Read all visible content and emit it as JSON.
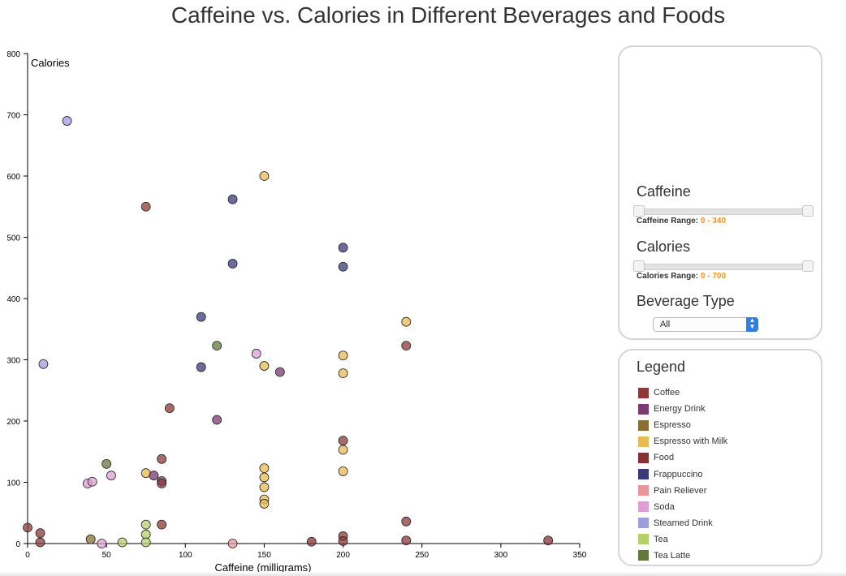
{
  "colors": {
    "Coffee": "#8b3a38",
    "Energy Drink": "#7a3a72",
    "Espresso": "#8c6d32",
    "Espresso with Milk": "#e7ba52",
    "Food": "#843232",
    "Frappuccino": "#393b79",
    "Pain Reliever": "#e7969c",
    "Soda": "#de9ed6",
    "Steamed Drink": "#9c9ede",
    "Tea": "#b5cf6b",
    "Tea Latte": "#637939"
  },
  "controls": {
    "caffeine_label": "Caffeine",
    "caffeine_range_label": "Caffeine Range:",
    "caffeine_range_value": "0 - 340",
    "calories_label": "Calories",
    "calories_range_label": "Calories Range:",
    "calories_range_value": "0 - 700",
    "beverage_type_label": "Beverage Type",
    "beverage_type_value": "All"
  },
  "legend": {
    "title": "Legend",
    "items": [
      "Coffee",
      "Energy Drink",
      "Espresso",
      "Espresso with Milk",
      "Food",
      "Frappuccino",
      "Pain Reliever",
      "Soda",
      "Steamed Drink",
      "Tea",
      "Tea Latte"
    ]
  },
  "chart_data": {
    "type": "scatter",
    "title": "Caffeine vs. Calories in Different Beverages and Foods",
    "xlabel": "Caffeine (milligrams)",
    "ylabel": "Calories",
    "xlim": [
      0,
      350
    ],
    "ylim": [
      0,
      800
    ],
    "xticks": [
      0,
      50,
      100,
      150,
      200,
      250,
      300,
      350
    ],
    "yticks": [
      0,
      100,
      200,
      300,
      400,
      500,
      600,
      700,
      800
    ],
    "grid": false,
    "legend_position": "right",
    "points": [
      {
        "x": 25,
        "y": 690,
        "category": "Steamed Drink"
      },
      {
        "x": 10,
        "y": 293,
        "category": "Steamed Drink"
      },
      {
        "x": 75,
        "y": 550,
        "category": "Coffee"
      },
      {
        "x": 150,
        "y": 600,
        "category": "Espresso with Milk"
      },
      {
        "x": 130,
        "y": 562,
        "category": "Frappuccino"
      },
      {
        "x": 130,
        "y": 457,
        "category": "Frappuccino"
      },
      {
        "x": 200,
        "y": 483,
        "category": "Frappuccino"
      },
      {
        "x": 200,
        "y": 452,
        "category": "Frappuccino"
      },
      {
        "x": 110,
        "y": 370,
        "category": "Frappuccino"
      },
      {
        "x": 110,
        "y": 288,
        "category": "Frappuccino"
      },
      {
        "x": 240,
        "y": 362,
        "category": "Espresso with Milk"
      },
      {
        "x": 240,
        "y": 323,
        "category": "Coffee"
      },
      {
        "x": 120,
        "y": 323,
        "category": "Tea Latte"
      },
      {
        "x": 145,
        "y": 310,
        "category": "Soda"
      },
      {
        "x": 160,
        "y": 280,
        "category": "Energy Drink"
      },
      {
        "x": 150,
        "y": 290,
        "category": "Espresso with Milk"
      },
      {
        "x": 200,
        "y": 307,
        "category": "Espresso with Milk"
      },
      {
        "x": 200,
        "y": 278,
        "category": "Espresso with Milk"
      },
      {
        "x": 90,
        "y": 221,
        "category": "Coffee"
      },
      {
        "x": 120,
        "y": 202,
        "category": "Energy Drink"
      },
      {
        "x": 200,
        "y": 168,
        "category": "Coffee"
      },
      {
        "x": 200,
        "y": 153,
        "category": "Espresso with Milk"
      },
      {
        "x": 200,
        "y": 118,
        "category": "Espresso with Milk"
      },
      {
        "x": 50,
        "y": 130,
        "category": "Tea Latte"
      },
      {
        "x": 85,
        "y": 138,
        "category": "Coffee"
      },
      {
        "x": 75,
        "y": 115,
        "category": "Espresso with Milk"
      },
      {
        "x": 80,
        "y": 111,
        "category": "Energy Drink"
      },
      {
        "x": 85,
        "y": 102,
        "category": "Energy Drink"
      },
      {
        "x": 85,
        "y": 98,
        "category": "Coffee"
      },
      {
        "x": 53,
        "y": 111,
        "category": "Soda"
      },
      {
        "x": 38,
        "y": 98,
        "category": "Soda"
      },
      {
        "x": 41,
        "y": 101,
        "category": "Soda"
      },
      {
        "x": 150,
        "y": 123,
        "category": "Espresso with Milk"
      },
      {
        "x": 150,
        "y": 108,
        "category": "Espresso with Milk"
      },
      {
        "x": 150,
        "y": 92,
        "category": "Espresso with Milk"
      },
      {
        "x": 150,
        "y": 72,
        "category": "Espresso with Milk"
      },
      {
        "x": 150,
        "y": 65,
        "category": "Espresso with Milk"
      },
      {
        "x": 75,
        "y": 31,
        "category": "Tea"
      },
      {
        "x": 75,
        "y": 15,
        "category": "Tea"
      },
      {
        "x": 75,
        "y": 2,
        "category": "Tea"
      },
      {
        "x": 60,
        "y": 2,
        "category": "Tea"
      },
      {
        "x": 85,
        "y": 31,
        "category": "Coffee"
      },
      {
        "x": 240,
        "y": 36,
        "category": "Coffee"
      },
      {
        "x": 0,
        "y": 26,
        "category": "Coffee"
      },
      {
        "x": 8,
        "y": 17,
        "category": "Coffee"
      },
      {
        "x": 8,
        "y": 2,
        "category": "Coffee"
      },
      {
        "x": 40,
        "y": 7,
        "category": "Espresso"
      },
      {
        "x": 47,
        "y": 0,
        "category": "Soda"
      },
      {
        "x": 130,
        "y": 0,
        "category": "Pain Reliever"
      },
      {
        "x": 180,
        "y": 3,
        "category": "Food"
      },
      {
        "x": 200,
        "y": 12,
        "category": "Coffee"
      },
      {
        "x": 200,
        "y": 4,
        "category": "Coffee"
      },
      {
        "x": 240,
        "y": 5,
        "category": "Coffee"
      },
      {
        "x": 330,
        "y": 5,
        "category": "Food"
      }
    ]
  }
}
